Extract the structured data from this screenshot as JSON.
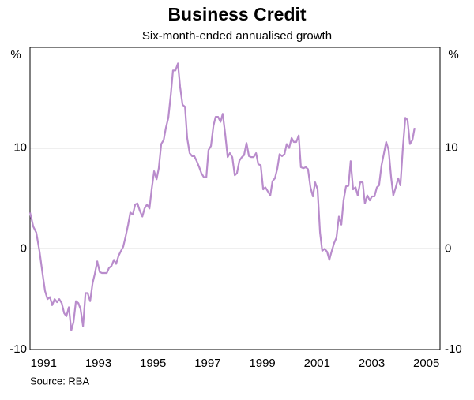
{
  "chart_data": {
    "type": "line",
    "title": "Business Credit",
    "subtitle": "Six-month-ended annualised growth",
    "y_unit": "%",
    "source": "Source: RBA",
    "grid": true,
    "xlim": [
      1991,
      2006
    ],
    "ylim": [
      -10,
      20
    ],
    "yticks": [
      -10,
      0,
      10
    ],
    "xticks": [
      {
        "value": 1991.5,
        "label": "1991"
      },
      {
        "value": 1993.5,
        "label": "1993"
      },
      {
        "value": 1995.5,
        "label": "1995"
      },
      {
        "value": 1997.5,
        "label": "1997"
      },
      {
        "value": 1999.5,
        "label": "1999"
      },
      {
        "value": 2001.5,
        "label": "2001"
      },
      {
        "value": 2003.5,
        "label": "2003"
      },
      {
        "value": 2005.5,
        "label": "2005"
      }
    ],
    "x": [
      1991,
      1991.12,
      1991.23,
      1991.35,
      1991.47,
      1991.55,
      1991.64,
      1991.73,
      1991.81,
      1991.9,
      1991.99,
      1992.07,
      1992.16,
      1992.25,
      1992.33,
      1992.42,
      1992.51,
      1992.59,
      1992.68,
      1992.77,
      1992.85,
      1992.94,
      1993.03,
      1993.11,
      1993.2,
      1993.29,
      1993.37,
      1993.46,
      1993.55,
      1993.63,
      1993.72,
      1993.81,
      1993.89,
      1993.98,
      1994.07,
      1994.15,
      1994.24,
      1994.33,
      1994.41,
      1994.5,
      1994.59,
      1994.67,
      1994.76,
      1994.85,
      1994.93,
      1995.02,
      1995.11,
      1995.19,
      1995.28,
      1995.37,
      1995.45,
      1995.54,
      1995.63,
      1995.71,
      1995.8,
      1995.89,
      1995.97,
      1996.06,
      1996.15,
      1996.23,
      1996.32,
      1996.41,
      1996.49,
      1996.58,
      1996.67,
      1996.75,
      1996.84,
      1996.93,
      1997.01,
      1997.1,
      1997.19,
      1997.27,
      1997.36,
      1997.45,
      1997.53,
      1997.62,
      1997.71,
      1997.79,
      1997.88,
      1997.97,
      1998.05,
      1998.14,
      1998.23,
      1998.31,
      1998.4,
      1998.49,
      1998.57,
      1998.66,
      1998.75,
      1998.83,
      1998.92,
      1999.01,
      1999.09,
      1999.18,
      1999.27,
      1999.35,
      1999.44,
      1999.53,
      1999.61,
      1999.7,
      1999.79,
      1999.87,
      1999.96,
      2000.05,
      2000.13,
      2000.22,
      2000.31,
      2000.39,
      2000.48,
      2000.57,
      2000.65,
      2000.74,
      2000.83,
      2000.91,
      2001,
      2001.09,
      2001.17,
      2001.26,
      2001.35,
      2001.43,
      2001.52,
      2001.61,
      2001.69,
      2001.78,
      2001.87,
      2001.95,
      2002.04,
      2002.13,
      2002.21,
      2002.3,
      2002.39,
      2002.47,
      2002.56,
      2002.65,
      2002.73,
      2002.82,
      2002.91,
      2002.99,
      2003.08,
      2003.17,
      2003.25,
      2003.34,
      2003.43,
      2003.51,
      2003.6,
      2003.69,
      2003.77,
      2003.86,
      2003.95,
      2004.03,
      2004.12,
      2004.21,
      2004.29,
      2004.38,
      2004.47,
      2004.55,
      2004.64,
      2004.73,
      2004.81,
      2004.9,
      2004.99,
      2005.07
    ],
    "series": [
      {
        "color": "#b98ccc",
        "values": [
          3.6,
          2.2,
          1.6,
          -0.3,
          -2.7,
          -4.2,
          -5,
          -4.8,
          -5.6,
          -5,
          -5.3,
          -5,
          -5.4,
          -6.4,
          -6.7,
          -5.8,
          -8.1,
          -7.3,
          -5.2,
          -5.4,
          -6,
          -7.7,
          -4.4,
          -4.4,
          -5.2,
          -3.4,
          -2.5,
          -1.25,
          -2.3,
          -2.4,
          -2.4,
          -2.4,
          -1.9,
          -1.7,
          -1.1,
          -1.5,
          -0.7,
          -0.2,
          0.2,
          1.25,
          2.4,
          3.6,
          3.4,
          4.4,
          4.5,
          3.75,
          3.2,
          4,
          4.4,
          4,
          5.9,
          7.7,
          6.9,
          8,
          10.4,
          10.8,
          12,
          13,
          15.3,
          17.7,
          17.7,
          18.4,
          16.1,
          14.3,
          14.1,
          11,
          9.5,
          9.2,
          9.2,
          8.7,
          8.1,
          7.5,
          7.1,
          7.1,
          9.8,
          10.2,
          12.2,
          13.1,
          13.1,
          12.6,
          13.4,
          11.4,
          9.1,
          9.5,
          9.1,
          7.3,
          7.5,
          8.75,
          9.1,
          9.3,
          10.5,
          9.2,
          9.1,
          9.1,
          9.5,
          8.4,
          8.3,
          5.9,
          6.1,
          5.7,
          5.3,
          6.7,
          7,
          8,
          9.4,
          9.2,
          9.4,
          10.4,
          10,
          11,
          10.6,
          10.6,
          11.25,
          8.1,
          8,
          8.1,
          7.9,
          6.1,
          5.2,
          6.6,
          5.9,
          1.6,
          -0.2,
          0,
          -0.3,
          -1.1,
          -0.2,
          0.6,
          1.1,
          3.2,
          2.4,
          4.8,
          6.2,
          6.25,
          8.7,
          5.9,
          6.1,
          5.3,
          6.6,
          6.6,
          4.5,
          5.3,
          4.8,
          5.2,
          5.2,
          6.1,
          6.3,
          8.3,
          9.5,
          10.6,
          9.8,
          7.1,
          5.3,
          6.1,
          7,
          6.3,
          10,
          13,
          12.8,
          10.4,
          10.8,
          12
        ]
      }
    ]
  }
}
